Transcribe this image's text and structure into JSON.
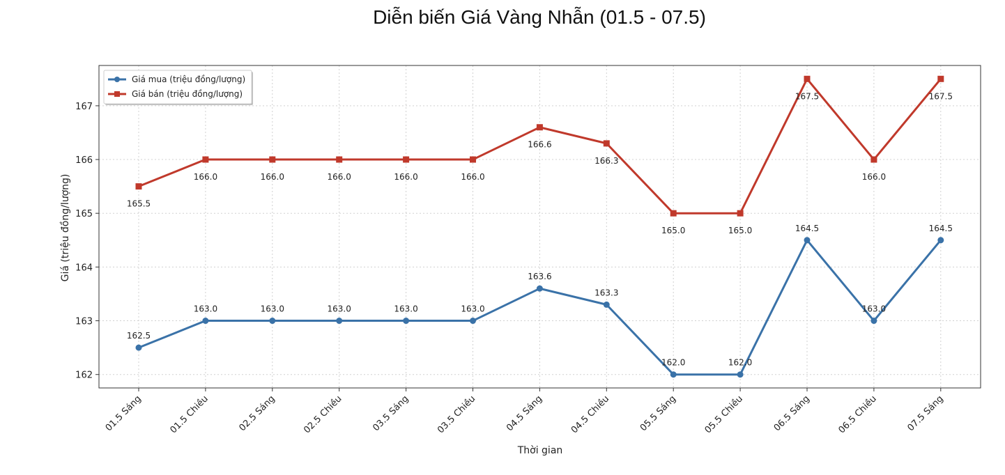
{
  "chart_data": {
    "type": "line",
    "title": "Diễn biến Giá Vàng Nhẫn (01.5 - 07.5)",
    "xlabel": "Thời gian",
    "ylabel": "Giá (triệu đồng/lượng)",
    "categories": [
      "01.5 Sáng",
      "01.5 Chiều",
      "02.5 Sáng",
      "02.5 Chiều",
      "03.5 Sáng",
      "03.5 Chiều",
      "04.5 Sáng",
      "04.5 Chiều",
      "05.5 Sáng",
      "05.5 Chiều",
      "06.5 Sáng",
      "06.5 Chiều",
      "07.5 Sáng"
    ],
    "yticks": [
      162,
      163,
      164,
      165,
      166,
      167
    ],
    "ylim": [
      161.75,
      167.75
    ],
    "grid": true,
    "legend_position": "top-left",
    "series": [
      {
        "name": "Giá mua (triệu đồng/lượng)",
        "color": "#3a72a8",
        "marker": "circle",
        "values": [
          162.5,
          163.0,
          163.0,
          163.0,
          163.0,
          163.0,
          163.6,
          163.3,
          162.0,
          162.0,
          164.5,
          163.0,
          164.5
        ],
        "labels": [
          "162.5",
          "163.0",
          "163.0",
          "163.0",
          "163.0",
          "163.0",
          "163.6",
          "163.3",
          "162.0",
          "162.0",
          "164.5",
          "163.0",
          "164.5"
        ]
      },
      {
        "name": "Giá bán (triệu đồng/lượng)",
        "color": "#c0392b",
        "marker": "square",
        "values": [
          165.5,
          166.0,
          166.0,
          166.0,
          166.0,
          166.0,
          166.6,
          166.3,
          165.0,
          165.0,
          167.5,
          166.0,
          167.5
        ],
        "labels": [
          "165.5",
          "166.0",
          "166.0",
          "166.0",
          "166.0",
          "166.0",
          "166.6",
          "166.3",
          "165.0",
          "165.0",
          "167.5",
          "166.0",
          "167.5"
        ]
      }
    ]
  }
}
